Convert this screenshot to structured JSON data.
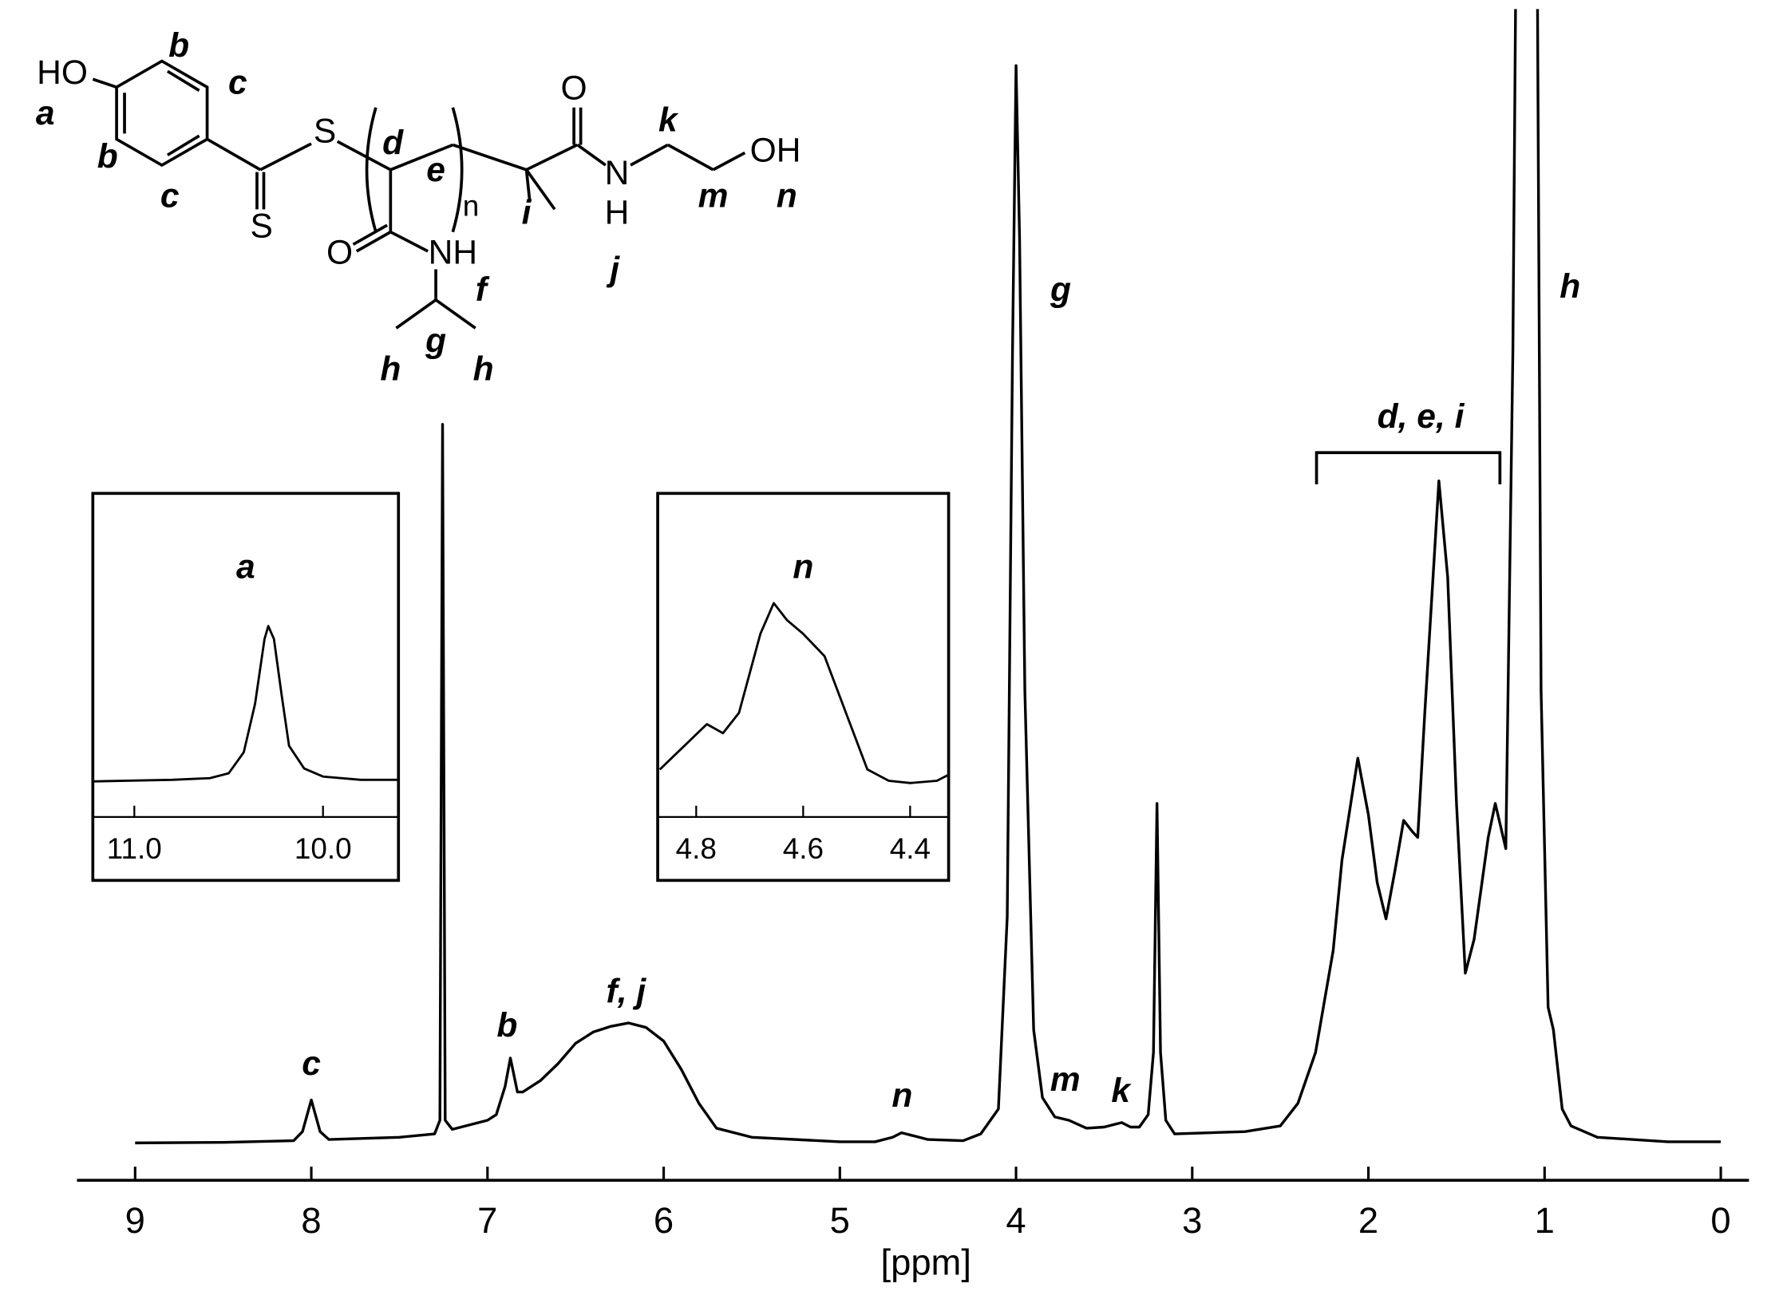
{
  "chart_data": [
    {
      "type": "line",
      "x_label": "[ppm]",
      "color": "#000000",
      "xlim": [
        9.33,
        -0.16
      ],
      "ylim": [
        -3.3,
        100
      ],
      "xticks": [
        9,
        8,
        7,
        6,
        5,
        4,
        3,
        2,
        1,
        0
      ],
      "x": [
        9.0,
        8.5,
        8.1,
        8.05,
        8.0,
        7.95,
        7.9,
        7.5,
        7.3,
        7.27,
        7.255,
        7.24,
        7.2,
        7.0,
        6.95,
        6.9,
        6.87,
        6.83,
        6.8,
        6.7,
        6.6,
        6.5,
        6.4,
        6.3,
        6.2,
        6.1,
        6.0,
        5.9,
        5.8,
        5.7,
        5.5,
        5.0,
        4.8,
        4.7,
        4.65,
        4.5,
        4.3,
        4.2,
        4.1,
        4.05,
        4.02,
        4.0,
        3.98,
        3.95,
        3.9,
        3.85,
        3.78,
        3.7,
        3.6,
        3.5,
        3.4,
        3.35,
        3.3,
        3.25,
        3.22,
        3.2,
        3.18,
        3.15,
        3.1,
        2.7,
        2.5,
        2.4,
        2.3,
        2.2,
        2.15,
        2.1,
        2.06,
        2.0,
        1.95,
        1.9,
        1.85,
        1.8,
        1.75,
        1.72,
        1.68,
        1.6,
        1.55,
        1.5,
        1.45,
        1.4,
        1.32,
        1.28,
        1.25,
        1.22,
        1.18,
        1.15,
        1.05,
        1.02,
        0.98,
        0.95,
        0.9,
        0.85,
        0.7,
        0.3,
        0.0
      ],
      "values": [
        0,
        0.05,
        0.2,
        1.0,
        3.8,
        1.0,
        0.3,
        0.5,
        0.8,
        2,
        63.5,
        2,
        1.2,
        2.0,
        2.5,
        5,
        7.5,
        4.5,
        4.5,
        5.5,
        7,
        8.8,
        9.8,
        10.3,
        10.6,
        10.2,
        9,
        6.5,
        3.5,
        1.3,
        0.5,
        0.1,
        0.1,
        0.5,
        0.9,
        0.3,
        0.2,
        0.8,
        3,
        20,
        70,
        95.2,
        80,
        40,
        10,
        4,
        2.3,
        2.0,
        1.3,
        1.4,
        1.8,
        1.4,
        1.4,
        2.5,
        8,
        30,
        8,
        2,
        0.8,
        1.0,
        1.5,
        3.5,
        8,
        17,
        25,
        30,
        34,
        29,
        23,
        19.8,
        24,
        28.5,
        27.5,
        27,
        38,
        58.5,
        50,
        30,
        15,
        18,
        27,
        30,
        28,
        26,
        70,
        130,
        130,
        40,
        12,
        10,
        3,
        1.5,
        0.5,
        0.1,
        0.1
      ],
      "annotations": [
        "c",
        "b",
        "f, j",
        "n",
        "g",
        "m",
        "k",
        "h",
        "d, e, i"
      ]
    },
    {
      "type": "line",
      "title": "a",
      "color": "#000000",
      "xlim": [
        11.22,
        9.6
      ],
      "ylim": [
        0,
        100
      ],
      "xticks": [
        {
          "value": 11,
          "label": "11.0"
        },
        {
          "value": 10,
          "label": "10.0"
        }
      ],
      "x": [
        11.22,
        10.8,
        10.6,
        10.5,
        10.42,
        10.36,
        10.31,
        10.29,
        10.26,
        10.22,
        10.18,
        10.1,
        10.0,
        9.8,
        9.6
      ],
      "values": [
        11.0,
        11.5,
        12,
        13.5,
        20,
        35,
        55,
        59,
        55,
        38,
        22,
        15,
        12.5,
        11.5,
        11.5
      ]
    },
    {
      "type": "line",
      "title": "n",
      "color": "#000000",
      "xlim": [
        4.872,
        4.328
      ],
      "ylim": [
        0,
        100
      ],
      "xticks": [
        4.8,
        4.6,
        4.4
      ],
      "x": [
        4.868,
        4.78,
        4.75,
        4.72,
        4.68,
        4.655,
        4.63,
        4.6,
        4.56,
        4.52,
        4.48,
        4.44,
        4.4,
        4.35,
        4.33
      ],
      "values": [
        14.7,
        28.7,
        25.9,
        32.2,
        56.6,
        66.1,
        60.8,
        56.6,
        49.7,
        32.2,
        14.7,
        11.2,
        10.5,
        11.2,
        12.9
      ]
    }
  ],
  "structure": {
    "atoms": [
      "HO",
      "S",
      "S",
      "O",
      "NH",
      "n",
      "O",
      "N",
      "H",
      "OH"
    ],
    "labels": [
      "a",
      "b",
      "c",
      "b",
      "c",
      "d",
      "e",
      "f",
      "g",
      "h",
      "h",
      "i",
      "j",
      "k",
      "m",
      "n"
    ]
  }
}
